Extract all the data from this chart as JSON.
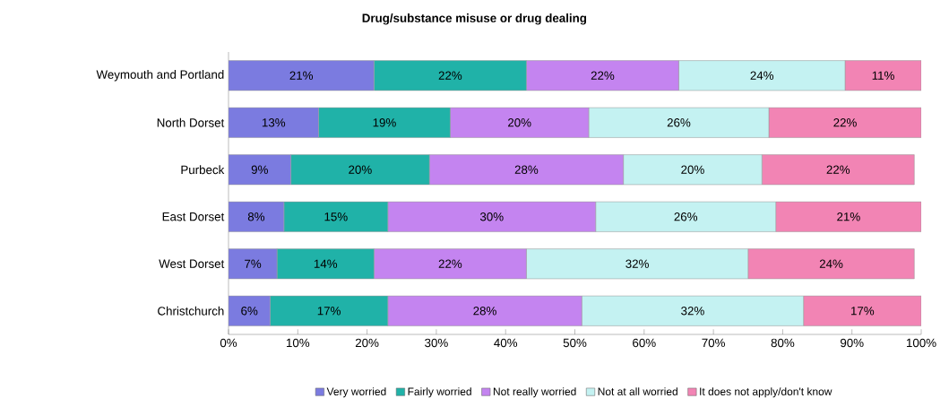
{
  "chart_data": {
    "type": "bar",
    "orientation": "horizontal",
    "stacked": true,
    "title": "Drug/substance misuse or drug dealing",
    "categories": [
      "Weymouth and Portland",
      "North Dorset",
      "Purbeck",
      "East Dorset",
      "West Dorset",
      "Christchurch"
    ],
    "series": [
      {
        "name": "Very worried",
        "color": "#7b7be0",
        "values": [
          21,
          13,
          9,
          8,
          7,
          6
        ],
        "value_labels": [
          "21%",
          "13%",
          "9%",
          "8%",
          "7%",
          "6%"
        ]
      },
      {
        "name": "Fairly worried",
        "color": "#20b2a8",
        "values": [
          22,
          19,
          20,
          15,
          14,
          17
        ],
        "value_labels": [
          "22%",
          "19%",
          "20%",
          "15%",
          "14%",
          "17%"
        ]
      },
      {
        "name": "Not really worried",
        "color": "#c484f0",
        "values": [
          22,
          20,
          28,
          30,
          22,
          28
        ],
        "value_labels": [
          "22%",
          "20%",
          "28%",
          "30%",
          "22%",
          "28%"
        ]
      },
      {
        "name": "Not at all worried",
        "color": "#c4f2f2",
        "values": [
          24,
          26,
          20,
          26,
          32,
          32
        ],
        "value_labels": [
          "24%",
          "26%",
          "20%",
          "26%",
          "32%",
          "32%"
        ]
      },
      {
        "name": "It does not apply/don't know",
        "color": "#f284b4",
        "values": [
          11,
          22,
          22,
          21,
          24,
          17
        ],
        "value_labels": [
          "11%",
          "22%",
          "22%",
          "21%",
          "24%",
          "17%"
        ]
      }
    ],
    "xlim": [
      0,
      100
    ],
    "xticks": [
      {
        "value": 0,
        "label": "0%"
      },
      {
        "value": 10,
        "label": "10%"
      },
      {
        "value": 20,
        "label": "20%"
      },
      {
        "value": 30,
        "label": "30%"
      },
      {
        "value": 40,
        "label": "40%"
      },
      {
        "value": 50,
        "label": "50%"
      },
      {
        "value": 60,
        "label": "60%"
      },
      {
        "value": 70,
        "label": "70%"
      },
      {
        "value": 80,
        "label": "80%"
      },
      {
        "value": 90,
        "label": "90%"
      },
      {
        "value": 100,
        "label": "100%"
      }
    ],
    "legend": "bottom",
    "grid": false
  }
}
